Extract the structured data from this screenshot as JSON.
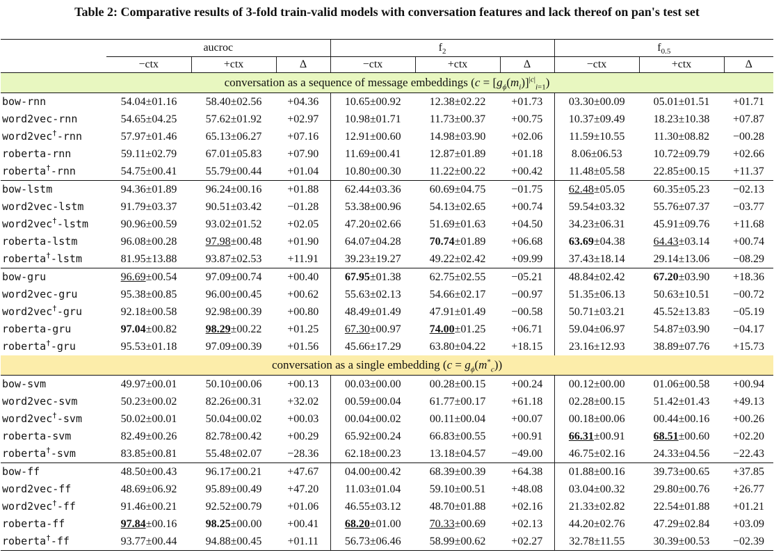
{
  "caption": "Table 2: Comparative results of 3-fold train-valid models with conversation features and lack thereof on pan's test set",
  "groups": [
    {
      "label": "aucroc",
      "sub": ""
    },
    {
      "label": "f",
      "sub": "2"
    },
    {
      "label": "f",
      "sub": "0.5"
    }
  ],
  "subheaders": [
    "−ctx",
    "+ctx",
    "Δ"
  ],
  "sections": [
    {
      "band": "conversation as a sequence of message embeddings (c = [gϕ(mi)]|c|i=1)",
      "blocks": [
        [
          {
            "name": "bow-rnn",
            "cells": [
              "54.04±01.16",
              "58.40±02.56",
              "+04.36",
              "10.65±00.92",
              "12.38±02.22",
              "+01.73",
              "03.30±00.09",
              "05.01±01.51",
              "+01.71"
            ]
          },
          {
            "name": "word2vec-rnn",
            "cells": [
              "54.65±04.25",
              "57.62±01.92",
              "+02.97",
              "10.98±01.71",
              "11.73±00.37",
              "+00.75",
              "10.37±09.49",
              "18.23±10.38",
              "+07.87"
            ]
          },
          {
            "name": "word2vec†-rnn",
            "cells": [
              "57.97±01.46",
              "65.13±06.27",
              "+07.16",
              "12.91±00.60",
              "14.98±03.90",
              "+02.06",
              "11.59±10.55",
              "11.30±08.82",
              "−00.28"
            ]
          },
          {
            "name": "roberta-rnn",
            "cells": [
              "59.11±02.79",
              "67.01±05.83",
              "+07.90",
              "11.69±00.41",
              "12.87±01.89",
              "+01.18",
              "8.06±06.53",
              "10.72±09.79",
              "+02.66"
            ]
          },
          {
            "name": "roberta†-rnn",
            "cells": [
              "54.75±00.41",
              "55.79±00.44",
              "+01.04",
              "10.80±00.30",
              "11.22±00.22",
              "+00.42",
              "11.48±05.58",
              "22.85±00.15",
              "+11.37"
            ]
          }
        ],
        [
          {
            "name": "bow-lstm",
            "cells": [
              "94.36±01.89",
              "96.24±00.16",
              "+01.88",
              "62.44±03.36",
              "60.69±04.75",
              "−01.75",
              "62.48±05.05",
              "60.35±05.23",
              "−02.13"
            ]
          },
          {
            "name": "word2vec-lstm",
            "cells": [
              "91.79±03.37",
              "90.51±03.42",
              "−01.28",
              "53.38±00.96",
              "54.13±02.65",
              "+00.74",
              "59.54±03.32",
              "55.76±07.37",
              "−03.77"
            ]
          },
          {
            "name": "word2vec†-lstm",
            "cells": [
              "90.96±00.59",
              "93.02±01.52",
              "+02.05",
              "47.20±02.66",
              "51.69±01.63",
              "+04.50",
              "34.23±06.31",
              "45.91±09.76",
              "+11.68"
            ]
          },
          {
            "name": "roberta-lstm",
            "cells": [
              "96.08±00.28",
              "97.98±00.48",
              "+01.90",
              "64.07±04.28",
              "70.74±01.89",
              "+06.68",
              "63.69±04.38",
              "64.43±03.14",
              "+00.74"
            ]
          },
          {
            "name": "roberta†-lstm",
            "cells": [
              "81.95±13.88",
              "93.87±02.53",
              "+11.91",
              "39.23±19.27",
              "49.22±02.42",
              "+09.99",
              "37.43±18.14",
              "29.14±13.06",
              "−08.29"
            ]
          }
        ],
        [
          {
            "name": "bow-gru",
            "cells": [
              "96.69±00.54",
              "97.09±00.74",
              "+00.40",
              "67.95±01.38",
              "62.75±02.55",
              "−05.21",
              "48.84±02.42",
              "67.20±03.90",
              "+18.36"
            ]
          },
          {
            "name": "word2vec-gru",
            "cells": [
              "95.38±00.85",
              "96.00±00.45",
              "+00.62",
              "55.63±02.13",
              "54.66±02.17",
              "−00.97",
              "51.35±06.13",
              "50.63±10.51",
              "−00.72"
            ]
          },
          {
            "name": "word2vec†-gru",
            "cells": [
              "92.18±00.58",
              "92.98±00.39",
              "+00.80",
              "48.49±01.49",
              "47.91±01.49",
              "−00.58",
              "50.71±03.21",
              "45.52±13.83",
              "−05.19"
            ]
          },
          {
            "name": "roberta-gru",
            "cells": [
              "97.04±00.82",
              "98.29±00.22",
              "+01.25",
              "67.30±00.97",
              "74.00±01.25",
              "+06.71",
              "59.04±06.97",
              "54.87±03.90",
              "−04.17"
            ]
          },
          {
            "name": "roberta†-gru",
            "cells": [
              "95.53±01.18",
              "97.09±00.39",
              "+01.56",
              "45.66±17.29",
              "63.80±04.22",
              "+18.15",
              "23.16±12.93",
              "38.89±07.76",
              "+15.73"
            ]
          }
        ]
      ]
    },
    {
      "band": "conversation as a single embedding (c = gϕ(m*c))",
      "blocks": [
        [
          {
            "name": "bow-svm",
            "cells": [
              "49.97±00.01",
              "50.10±00.06",
              "+00.13",
              "00.03±00.00",
              "00.28±00.15",
              "+00.24",
              "00.12±00.00",
              "01.06±00.58",
              "+00.94"
            ]
          },
          {
            "name": "word2vec-svm",
            "cells": [
              "50.23±00.02",
              "82.26±00.31",
              "+32.02",
              "00.59±00.04",
              "61.77±00.17",
              "+61.18",
              "02.28±00.15",
              "51.42±01.43",
              "+49.13"
            ]
          },
          {
            "name": "word2vec†-svm",
            "cells": [
              "50.02±00.01",
              "50.04±00.02",
              "+00.03",
              "00.04±00.02",
              "00.11±00.04",
              "+00.07",
              "00.18±00.06",
              "00.44±00.16",
              "+00.26"
            ]
          },
          {
            "name": "roberta-svm",
            "cells": [
              "82.49±00.26",
              "82.78±00.42",
              "+00.29",
              "65.92±00.24",
              "66.83±00.55",
              "+00.91",
              "66.31±00.91",
              "68.51±00.60",
              "+02.20"
            ]
          },
          {
            "name": "roberta†-svm",
            "cells": [
              "83.85±00.81",
              "55.48±02.07",
              "−28.36",
              "62.18±00.23",
              "13.18±04.57",
              "−49.00",
              "46.75±02.16",
              "24.33±04.56",
              "−22.43"
            ]
          }
        ],
        [
          {
            "name": "bow-ff",
            "cells": [
              "48.50±00.43",
              "96.17±00.21",
              "+47.67",
              "04.00±00.42",
              "68.39±00.39",
              "+64.38",
              "01.88±00.16",
              "39.73±00.65",
              "+37.85"
            ]
          },
          {
            "name": "word2vec-ff",
            "cells": [
              "48.69±06.92",
              "95.89±00.49",
              "+47.20",
              "11.03±01.04",
              "59.10±00.51",
              "+48.08",
              "03.04±00.32",
              "29.80±00.76",
              "+26.77"
            ]
          },
          {
            "name": "word2vec†-ff",
            "cells": [
              "91.46±00.21",
              "92.52±00.79",
              "+01.06",
              "46.55±03.12",
              "48.70±01.88",
              "+02.16",
              "21.33±02.82",
              "22.54±01.88",
              "+01.21"
            ]
          },
          {
            "name": "roberta-ff",
            "cells": [
              "97.84±00.16",
              "98.25±00.00",
              "+00.41",
              "68.20±01.00",
              "70.33±00.69",
              "+02.13",
              "44.20±02.76",
              "47.29±02.84",
              "+03.09"
            ]
          },
          {
            "name": "roberta†-ff",
            "cells": [
              "93.77±00.44",
              "94.88±00.45",
              "+01.11",
              "56.73±06.46",
              "58.99±00.62",
              "+02.27",
              "32.78±11.55",
              "30.39±00.53",
              "−02.39"
            ]
          }
        ]
      ]
    }
  ]
}
